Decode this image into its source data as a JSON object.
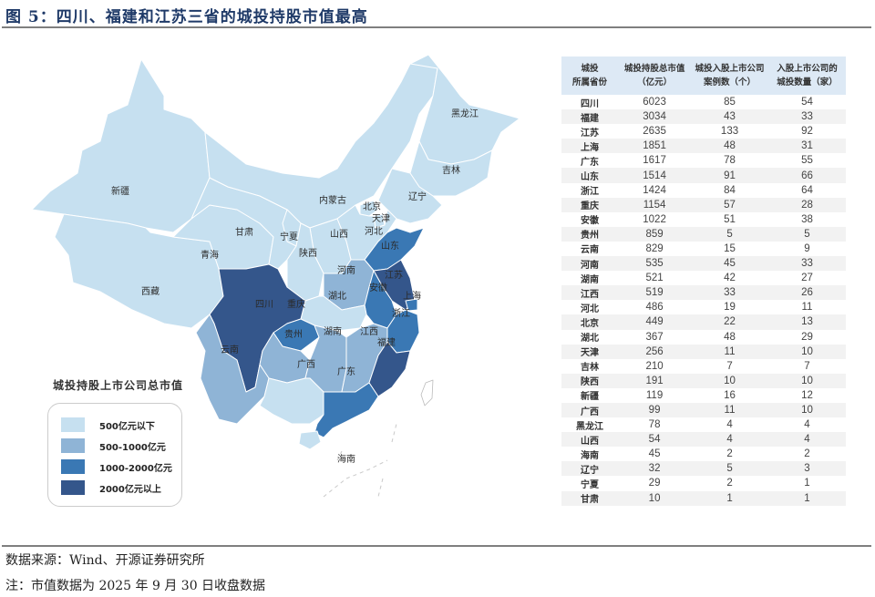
{
  "title": "图 5：四川、福建和江苏三省的城投持股市值最高",
  "footer": {
    "source": "数据来源：Wind、开源证券研究所",
    "note": "注：市值数据为 2025 年 9 月 30 日收盘数据"
  },
  "legend": {
    "title": "城投持股上市公司总市值",
    "items": [
      {
        "label": "500亿元以下",
        "color": "#c6e0f0"
      },
      {
        "label": "500-1000亿元",
        "color": "#8fb4d6"
      },
      {
        "label": "1000-2000亿元",
        "color": "#3a78b4"
      },
      {
        "label": "2000亿元以上",
        "color": "#34568b"
      }
    ]
  },
  "map": {
    "labels": {
      "xinjiang": "新疆",
      "xizang": "西藏",
      "qinghai": "青海",
      "gansu": "甘肃",
      "neimenggu": "内蒙古",
      "heilongjiang": "黑龙江",
      "jilin": "吉林",
      "liaoning": "辽宁",
      "beijing": "北京",
      "tianjin": "天津",
      "hebei": "河北",
      "shanxi": "山西",
      "ningxia": "宁夏",
      "shaanxi": "陕西",
      "shandong": "山东",
      "henan": "河南",
      "jiangsu": "江苏",
      "anhui": "安徽",
      "shanghai": "上海",
      "hubei": "湖北",
      "sichuan": "四川",
      "chongqing": "重庆",
      "zhejiang": "浙江",
      "guizhou": "贵州",
      "hunan": "湖南",
      "jiangxi": "江西",
      "fujian": "福建",
      "yunnan": "云南",
      "guangxi": "广西",
      "guangdong": "广东",
      "hainan": "海南"
    }
  },
  "table": {
    "headers": [
      "城投\n所属省份",
      "城投持股总市值\n（亿元）",
      "城投入股上市公司\n案例数（个）",
      "入股上市公司的\n城投数量（家）"
    ],
    "rows": [
      [
        "四川",
        "6023",
        "85",
        "54"
      ],
      [
        "福建",
        "3034",
        "43",
        "33"
      ],
      [
        "江苏",
        "2635",
        "133",
        "92"
      ],
      [
        "上海",
        "1851",
        "48",
        "31"
      ],
      [
        "广东",
        "1617",
        "78",
        "55"
      ],
      [
        "山东",
        "1514",
        "91",
        "66"
      ],
      [
        "浙江",
        "1424",
        "84",
        "64"
      ],
      [
        "重庆",
        "1154",
        "57",
        "28"
      ],
      [
        "安徽",
        "1022",
        "51",
        "38"
      ],
      [
        "贵州",
        "859",
        "5",
        "5"
      ],
      [
        "云南",
        "829",
        "15",
        "9"
      ],
      [
        "河南",
        "535",
        "45",
        "33"
      ],
      [
        "湖南",
        "521",
        "42",
        "27"
      ],
      [
        "江西",
        "519",
        "33",
        "26"
      ],
      [
        "河北",
        "486",
        "19",
        "11"
      ],
      [
        "北京",
        "449",
        "22",
        "13"
      ],
      [
        "湖北",
        "367",
        "48",
        "29"
      ],
      [
        "天津",
        "256",
        "11",
        "10"
      ],
      [
        "吉林",
        "210",
        "7",
        "7"
      ],
      [
        "陕西",
        "191",
        "10",
        "10"
      ],
      [
        "新疆",
        "119",
        "16",
        "12"
      ],
      [
        "广西",
        "99",
        "11",
        "10"
      ],
      [
        "黑龙江",
        "78",
        "4",
        "4"
      ],
      [
        "山西",
        "54",
        "4",
        "4"
      ],
      [
        "海南",
        "45",
        "2",
        "2"
      ],
      [
        "辽宁",
        "32",
        "5",
        "3"
      ],
      [
        "宁夏",
        "29",
        "2",
        "1"
      ],
      [
        "甘肃",
        "10",
        "1",
        "1"
      ]
    ]
  },
  "chart_data": {
    "type": "table",
    "title": "图 5：四川、福建和江苏三省的城投持股市值最高",
    "map_type": "choropleth",
    "legend_bins": [
      "500亿元以下",
      "500-1000亿元",
      "1000-2000亿元",
      "2000亿元以上"
    ],
    "columns": [
      "城投所属省份",
      "城投持股总市值（亿元）",
      "城投入股上市公司案例数（个）",
      "入股上市公司的城投数量（家）"
    ],
    "categories": [
      "四川",
      "福建",
      "江苏",
      "上海",
      "广东",
      "山东",
      "浙江",
      "重庆",
      "安徽",
      "贵州",
      "云南",
      "河南",
      "湖南",
      "江西",
      "河北",
      "北京",
      "湖北",
      "天津",
      "吉林",
      "陕西",
      "新疆",
      "广西",
      "黑龙江",
      "山西",
      "海南",
      "辽宁",
      "宁夏",
      "甘肃"
    ],
    "series": [
      {
        "name": "城投持股总市值（亿元）",
        "values": [
          6023,
          3034,
          2635,
          1851,
          1617,
          1514,
          1424,
          1154,
          1022,
          859,
          829,
          535,
          521,
          519,
          486,
          449,
          367,
          256,
          210,
          191,
          119,
          99,
          78,
          54,
          45,
          32,
          29,
          10
        ]
      },
      {
        "name": "城投入股上市公司案例数（个）",
        "values": [
          85,
          43,
          133,
          48,
          78,
          91,
          84,
          57,
          51,
          5,
          15,
          45,
          42,
          33,
          19,
          22,
          48,
          11,
          7,
          10,
          16,
          11,
          4,
          4,
          2,
          5,
          2,
          1
        ]
      },
      {
        "name": "入股上市公司的城投数量（家）",
        "values": [
          54,
          33,
          92,
          31,
          55,
          66,
          64,
          28,
          38,
          5,
          9,
          33,
          27,
          26,
          11,
          13,
          29,
          10,
          7,
          10,
          12,
          10,
          4,
          4,
          2,
          3,
          1,
          1
        ]
      }
    ]
  }
}
